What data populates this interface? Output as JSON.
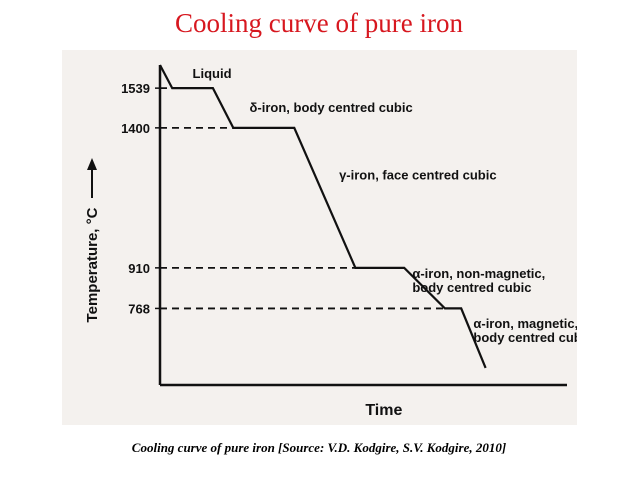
{
  "slide": {
    "title": "Cooling curve of pure iron",
    "caption": "Cooling curve of pure iron [Source: V.D. Kodgire, S.V. Kodgire, 2010]"
  },
  "chart_data": {
    "type": "line",
    "title": "",
    "xlabel": "Time",
    "ylabel": "Temperature, °C",
    "ytick_labels": [
      "1539",
      "1400",
      "910",
      "768"
    ],
    "series": [
      {
        "points": [
          {
            "t": 0.0,
            "temp": 1620
          },
          {
            "t": 0.03,
            "temp": 1539
          },
          {
            "t": 0.13,
            "temp": 1539
          },
          {
            "t": 0.18,
            "temp": 1400
          },
          {
            "t": 0.33,
            "temp": 1400
          },
          {
            "t": 0.48,
            "temp": 910
          },
          {
            "t": 0.6,
            "temp": 910
          },
          {
            "t": 0.7,
            "temp": 768
          },
          {
            "t": 0.74,
            "temp": 768
          },
          {
            "t": 0.8,
            "temp": 560
          }
        ]
      }
    ],
    "phase_labels": [
      {
        "text": "Liquid",
        "t": 0.08,
        "temp": 1575
      },
      {
        "text": "δ-iron, body centred cubic",
        "t": 0.22,
        "temp": 1455
      },
      {
        "text": "γ-iron, face centred cubic",
        "t": 0.44,
        "temp": 1220
      },
      {
        "text": "α-iron, non-magnetic,",
        "t": 0.62,
        "temp": 875
      },
      {
        "text": "body centred cubic",
        "t": 0.62,
        "temp": 825
      },
      {
        "text": "α-iron, magnetic,",
        "t": 0.77,
        "temp": 700
      },
      {
        "text": "body centred cubic",
        "t": 0.77,
        "temp": 650
      }
    ],
    "reference_lines": [
      1539,
      1400,
      910,
      768
    ],
    "grid": false
  },
  "colors": {
    "title": "#d7171f",
    "ink": "#111111",
    "paper": "#f4f1ee"
  }
}
